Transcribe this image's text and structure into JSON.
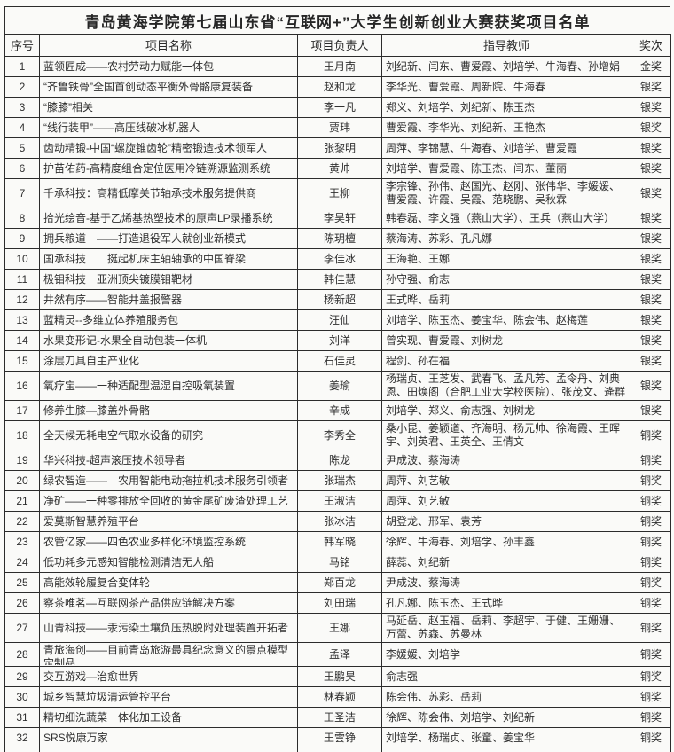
{
  "title": "青岛黄海学院第七届山东省“互联网+”大学生创新创业大赛获奖项目名单",
  "colors": {
    "page_bg": "#fbfbf9",
    "paper_bg": "#fafaf8",
    "border": "#2c2c2c",
    "text": "#2f2f2f"
  },
  "table": {
    "columns": [
      "序号",
      "项目名称",
      "项目负责人",
      "指导教师",
      "奖次"
    ],
    "rows": [
      {
        "no": "1",
        "project": "蓝领匠成——农村劳动力赋能一体包",
        "leader": "王月南",
        "advisors": "刘纪新、闫东、曹爱霞、刘培学、牛海春、孙增娟",
        "award": "金奖"
      },
      {
        "no": "2",
        "project": "“齐鲁铁骨”全国首创动态平衡外骨骼康复装备",
        "leader": "赵和龙",
        "advisors": "李华光、曹爱霞、周新院、牛海春",
        "award": "银奖"
      },
      {
        "no": "3",
        "project": "“膝膝”相关",
        "leader": "李一凡",
        "advisors": "郑义、刘培学、刘纪新、陈玉杰",
        "award": "银奖"
      },
      {
        "no": "4",
        "project": "“线行装甲”——高压线破冰机器人",
        "leader": "贾玮",
        "advisors": "曹爱霞、李华光、刘纪新、王艳杰",
        "award": "银奖"
      },
      {
        "no": "5",
        "project": "齿动精锻-中国“螺旋锥齿轮”精密锻造技术领军人",
        "leader": "张黎明",
        "advisors": "周萍、李锦慧、牛海春、刘培学、曹爱霞",
        "award": "银奖"
      },
      {
        "no": "6",
        "project": "护苗佑药-高精度组合定位医用冷链溯源监测系统",
        "leader": "黄帅",
        "advisors": "刘培学、曹爱霞、陈玉杰、闫东、董丽",
        "award": "银奖"
      },
      {
        "no": "7",
        "project": "千承科技：高精低摩关节轴承技术服务提供商",
        "leader": "王柳",
        "advisors": "李宗锋、孙伟、赵国光、赵刚、张伟华、李媛媛、曹爱霞、许霞、吴霞、范晓鹏、吴秋霖",
        "award": "银奖"
      },
      {
        "no": "8",
        "project": "拾光绘音-基于乙烯基热塑技术的原声LP录播系统",
        "leader": "李昊轩",
        "advisors": "韩春磊、李文强（燕山大学）、王兵（燕山大学）",
        "award": "银奖"
      },
      {
        "no": "9",
        "project": "拥兵粮道　——打造退役军人就创业新模式",
        "leader": "陈玥檀",
        "advisors": "蔡海涛、苏彩、孔凡娜",
        "award": "银奖"
      },
      {
        "no": "10",
        "project": "国承科技　　挺起机床主轴轴承的中国脊梁",
        "leader": "李佳冰",
        "advisors": "王海艳、王娜",
        "award": "银奖"
      },
      {
        "no": "11",
        "project": "极钼科技　亚洲顶尖镀膜钼靶材",
        "leader": "韩佳慧",
        "advisors": "孙守强、俞志",
        "award": "银奖"
      },
      {
        "no": "12",
        "project": "井然有序——智能井盖报警器",
        "leader": "杨新超",
        "advisors": "王式晔、岳莉",
        "award": "银奖"
      },
      {
        "no": "13",
        "project": "蓝精灵--多维立体养殖服务包",
        "leader": "汪仙",
        "advisors": "刘培学、陈玉杰、姜宝华、陈会伟、赵梅莲",
        "award": "银奖"
      },
      {
        "no": "14",
        "project": "水果变形记-水果全自动包装一体机",
        "leader": "刘洋",
        "advisors": "曾实现、曹爱霞、刘树龙",
        "award": "银奖"
      },
      {
        "no": "15",
        "project": "涂层刀具自主产业化",
        "leader": "石佳灵",
        "advisors": "程剑、孙在福",
        "award": "银奖"
      },
      {
        "no": "16",
        "project": "氧疗宝——一种适配型温湿自控吸氧装置",
        "leader": "姜瑜",
        "advisors": "杨瑞贞、王芝发、武春飞、孟凡芳、孟令丹、刘典恩、田焕阁（合肥工业大学校医院）、张茂文、逄群",
        "award": "银奖"
      },
      {
        "no": "17",
        "project": "修养生膝—膝盖外骨骼",
        "leader": "辛成",
        "advisors": "刘培学、郑义、俞志强、刘树龙",
        "award": "银奖"
      },
      {
        "no": "18",
        "project": "全天候无耗电空气取水设备的研究",
        "leader": "李秀全",
        "advisors": "桑小昆、姜颖道、齐海明、杨元帅、徐海霞、王晖宇、刘英君、王英全、王倩文",
        "award": "铜奖"
      },
      {
        "no": "19",
        "project": "华兴科技-超声滚压技术领导者",
        "leader": "陈龙",
        "advisors": "尹成波、蔡海涛",
        "award": "铜奖"
      },
      {
        "no": "20",
        "project": "绿农智造——　农用智能电动拖拉机技术服务引领者",
        "leader": "张瑞杰",
        "advisors": "周萍、刘艺敏",
        "award": "铜奖"
      },
      {
        "no": "21",
        "project": "净矿——一种零排放全回收的黄金尾矿废渣处理工艺",
        "leader": "王淑洁",
        "advisors": "周萍、刘艺敏",
        "award": "铜奖"
      },
      {
        "no": "22",
        "project": "爱莫斯智慧养殖平台",
        "leader": "张冰洁",
        "advisors": "胡登龙、邢军、袁芳",
        "award": "铜奖"
      },
      {
        "no": "23",
        "project": "农管亿家——四色农业多样化环境监控系统",
        "leader": "韩军晓",
        "advisors": "徐辉、牛海春、刘培学、孙丰鑫",
        "award": "铜奖"
      },
      {
        "no": "24",
        "project": "低功耗多元感知智能检测清洁无人船",
        "leader": "马铭",
        "advisors": "薛蕊、刘纪新",
        "award": "铜奖"
      },
      {
        "no": "25",
        "project": "高能效轮履复合变体轮",
        "leader": "郑百龙",
        "advisors": "尹成波、蔡海涛",
        "award": "铜奖"
      },
      {
        "no": "26",
        "project": "察茶唯茗—互联网茶产品供应链解决方案",
        "leader": "刘田瑞",
        "advisors": "孔凡娜、陈玉杰、王式晔",
        "award": "铜奖"
      },
      {
        "no": "27",
        "project": "山青科技——汞污染土壤负压热脱附处理装置开拓者",
        "leader": "王娜",
        "advisors": "马延岳、赵玉福、岳莉、李超宇、于健、王姗姗、万蕾、苏森、苏曼林",
        "award": "铜奖"
      },
      {
        "no": "28",
        "project": "青旅海创——目前青岛旅游最具纪念意义的景点模型定制品",
        "leader": "孟泽",
        "advisors": "李媛媛、刘培学",
        "award": "铜奖",
        "project_clipped": true
      },
      {
        "no": "29",
        "project": "交互游戏—治愈世界",
        "leader": "王鹏昊",
        "advisors": "俞志强",
        "award": "铜奖"
      },
      {
        "no": "30",
        "project": "城乡智慧垃圾清运管控平台",
        "leader": "林春颖",
        "advisors": "陈会伟、苏彩、岳莉",
        "award": "铜奖"
      },
      {
        "no": "31",
        "project": "精切细洗蔬菜一体化加工设备",
        "leader": "王圣洁",
        "advisors": "徐辉、陈会伟、刘培学、刘纪新",
        "award": "铜奖"
      },
      {
        "no": "32",
        "project": "SRS悦康万家",
        "leader": "王雲铮",
        "advisors": "刘培学、杨瑞贞、张童、姜宝华",
        "award": "铜奖"
      }
    ]
  }
}
